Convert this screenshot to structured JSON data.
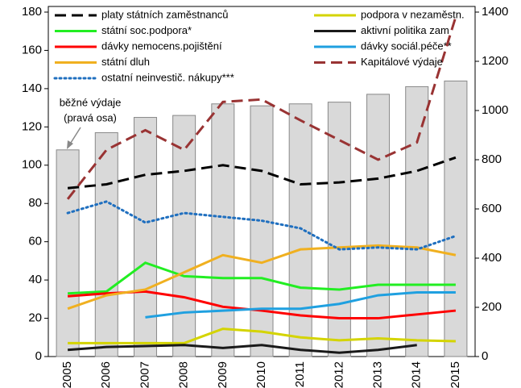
{
  "chart_data": {
    "type": "bar-line",
    "categories": [
      "2005",
      "2006",
      "2007",
      "2008",
      "2009",
      "2010",
      "2011",
      "2012",
      "2013",
      "2014",
      "2015"
    ],
    "bars": {
      "axis": "y2",
      "color": "#d9d9d9",
      "values": [
        840,
        910,
        972,
        980,
        1027,
        1019,
        1027,
        1034,
        1066,
        1097,
        1120
      ]
    },
    "annotation": [
      "běžné výdaje",
      "(pravá osa)"
    ],
    "series": [
      {
        "name": "platy státních zaměstnanců",
        "color": "#000000",
        "style": "dashed",
        "values": [
          88,
          90,
          95,
          97,
          100,
          97,
          90,
          91,
          93,
          97,
          104
        ]
      },
      {
        "name": "státní soc.podpora*",
        "color": "#22ee22",
        "style": "solid",
        "values": [
          33,
          34,
          49,
          42,
          41,
          41,
          36,
          35,
          37.5,
          37.5,
          37.5
        ]
      },
      {
        "name": "dávky nemocens.pojištění",
        "color": "#ff0000",
        "style": "solid",
        "values": [
          31.5,
          33,
          34,
          31,
          26,
          24,
          21.5,
          20,
          20,
          22,
          24
        ]
      },
      {
        "name": "státní dluh",
        "color": "#f0b020",
        "style": "solid",
        "values": [
          25,
          32,
          35,
          44,
          53,
          49,
          56,
          57,
          58,
          57,
          53
        ]
      },
      {
        "name": "ostatní neinvestič. nákupy***",
        "color": "#1f6fbf",
        "style": "dotted",
        "values": [
          75,
          81,
          70,
          75,
          73,
          71,
          67,
          56,
          57,
          56,
          63
        ]
      },
      {
        "name": "podpora v nezaměstn.",
        "color": "#d4d400",
        "style": "solid",
        "values": [
          7,
          7,
          7,
          7,
          14.5,
          13,
          10,
          8.5,
          9.5,
          8.5,
          8
        ]
      },
      {
        "name": "aktivní politika zam",
        "color": "#1a1a1a",
        "style": "solid",
        "values": [
          3.5,
          5,
          5.5,
          6,
          4.5,
          6,
          3.5,
          2,
          3.5,
          6,
          null
        ]
      },
      {
        "name": "dávky sociál.péče**",
        "color": "#1fa0e0",
        "style": "solid",
        "values": [
          null,
          null,
          20.5,
          23,
          24,
          25,
          25,
          27.5,
          32,
          33.5,
          33.5
        ]
      },
      {
        "name": "Kapitálové výdaje",
        "color": "#993333",
        "style": "dashed",
        "axis": "y2",
        "values": [
          640,
          840,
          920,
          840,
          1035,
          1045,
          960,
          880,
          800,
          870,
          1380
        ]
      }
    ],
    "ylim": [
      0,
      180
    ],
    "yticks": [
      0,
      20,
      40,
      60,
      80,
      100,
      120,
      140,
      160,
      180
    ],
    "y2lim": [
      0,
      1400
    ],
    "y2ticks": [
      0,
      200,
      400,
      600,
      800,
      1000,
      1200,
      1400
    ]
  }
}
